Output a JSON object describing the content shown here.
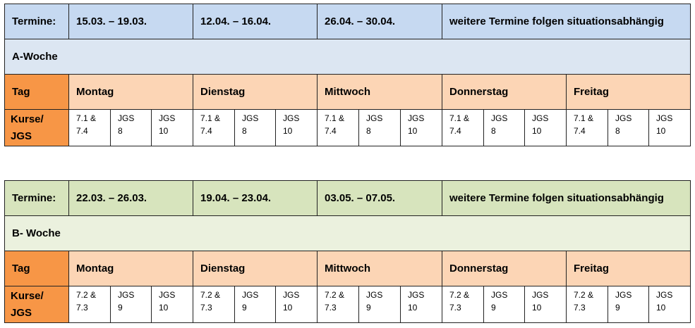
{
  "tables": [
    {
      "dates_label": "Termine:",
      "dates": [
        "15.03. – 19.03.",
        "12.04. – 16.04.",
        "26.04. – 30.04.",
        "weitere Termine folgen situationsabhängig"
      ],
      "week": "A-Woche",
      "day_label": "Tag",
      "days": [
        "Montag",
        "Dienstag",
        "Mittwoch",
        "Donnerstag",
        "Freitag"
      ],
      "courses_label": [
        "Kurse/",
        "JGS"
      ],
      "courses": [
        [
          [
            "7.1 &",
            "7.4"
          ],
          [
            "JGS",
            "8"
          ],
          [
            "JGS",
            "10"
          ]
        ],
        [
          [
            "7.1 &",
            "7.4"
          ],
          [
            "JGS",
            "8"
          ],
          [
            "JGS",
            "10"
          ]
        ],
        [
          [
            "7.1 &",
            "7.4"
          ],
          [
            "JGS",
            "8"
          ],
          [
            "JGS",
            "10"
          ]
        ],
        [
          [
            "7.1 &",
            "7.4"
          ],
          [
            "JGS",
            "8"
          ],
          [
            "JGS",
            "10"
          ]
        ],
        [
          [
            "7.1 &",
            "7.4"
          ],
          [
            "JGS",
            "8"
          ],
          [
            "JGS",
            "10"
          ]
        ]
      ]
    },
    {
      "dates_label": "Termine:",
      "dates": [
        "22.03. – 26.03.",
        "19.04. – 23.04.",
        "03.05. – 07.05.",
        "weitere Termine folgen situationsabhängig"
      ],
      "week": "B- Woche",
      "day_label": "Tag",
      "days": [
        "Montag",
        "Dienstag",
        "Mittwoch",
        "Donnerstag",
        "Freitag"
      ],
      "courses_label": [
        "Kurse/",
        "JGS"
      ],
      "courses": [
        [
          [
            "7.2 &",
            "7.3"
          ],
          [
            "JGS",
            "9"
          ],
          [
            "JGS",
            "10"
          ]
        ],
        [
          [
            "7.2 &",
            "7.3"
          ],
          [
            "JGS",
            "9"
          ],
          [
            "JGS",
            "10"
          ]
        ],
        [
          [
            "7.2 &",
            "7.3"
          ],
          [
            "JGS",
            "9"
          ],
          [
            "JGS",
            "10"
          ]
        ],
        [
          [
            "7.2 &",
            "7.3"
          ],
          [
            "JGS",
            "9"
          ],
          [
            "JGS",
            "10"
          ]
        ],
        [
          [
            "7.2 &",
            "7.3"
          ],
          [
            "JGS",
            "9"
          ],
          [
            "JGS",
            "10"
          ]
        ]
      ]
    }
  ]
}
